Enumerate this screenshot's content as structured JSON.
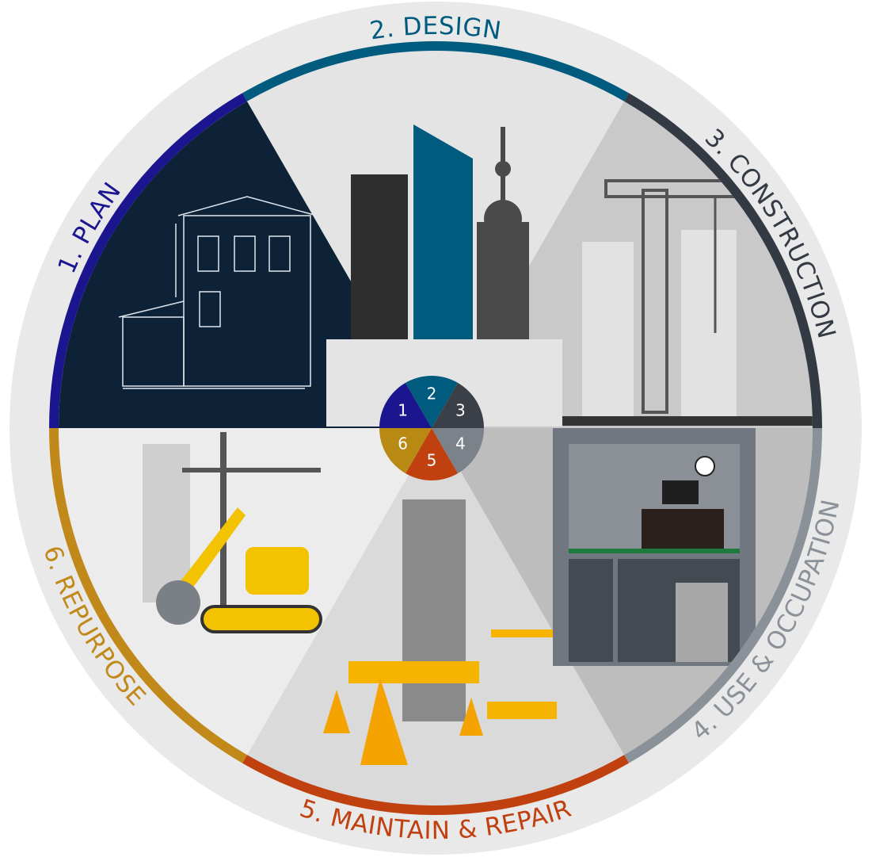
{
  "stages": [
    {
      "label": "1. PLAN",
      "number": "1"
    },
    {
      "label": "2. DESIGN",
      "number": "2"
    },
    {
      "label": "3. CONSTRUCTION",
      "number": "3"
    },
    {
      "label": "4. USE & OCCUPATION",
      "number": "4"
    },
    {
      "label": "5. MAINTAIN & REPAIR",
      "number": "5"
    },
    {
      "label": "6. REPURPOSE",
      "number": "6"
    }
  ]
}
